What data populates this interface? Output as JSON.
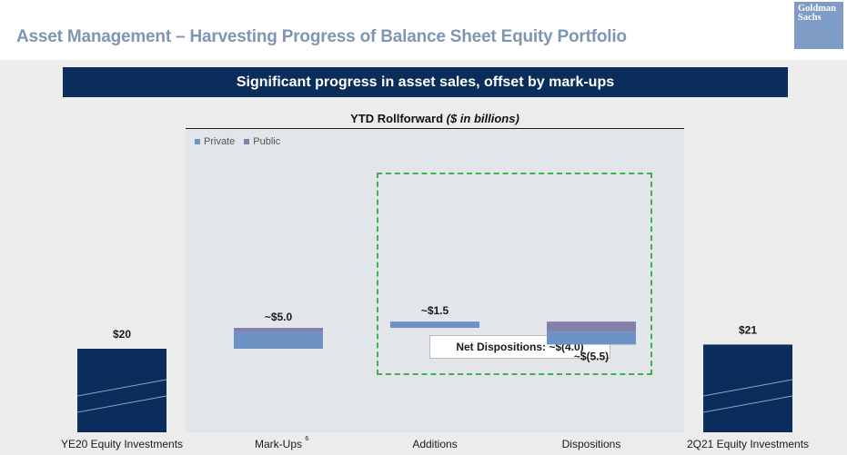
{
  "header": {
    "title": "Asset Management – Harvesting Progress of Balance Sheet Equity Portfolio",
    "logo_line1": "Goldman",
    "logo_line2": "Sachs"
  },
  "banner": {
    "text": "Significant progress in asset sales, offset by mark-ups"
  },
  "panel": {
    "title": "YTD Rollforward",
    "title_unit": "($ in billions)"
  },
  "net_dispositions": {
    "label": "Net Dispositions: ~$(4.0)"
  },
  "colors": {
    "private": "#6d93c4",
    "public": "#8480ae",
    "total": "#0b2d5b",
    "banner": "#0b2d5b",
    "net_box": "#3cb44b"
  },
  "chart_data": {
    "type": "waterfall",
    "title": "YTD Rollforward ($ in billions)",
    "unit": "$ in billions",
    "legend": [
      "Private",
      "Public"
    ],
    "legend_position": "top-left",
    "categories": [
      "YE20 Equity Investments",
      "Mark-Ups",
      "Additions",
      "Dispositions",
      "2Q21 Equity Investments"
    ],
    "category_superscripts": [
      "",
      "6",
      "",
      "",
      ""
    ],
    "bars": [
      {
        "category": "YE20 Equity Investments",
        "kind": "total",
        "value": 20,
        "label": "$20"
      },
      {
        "category": "Mark-Ups",
        "kind": "change",
        "value": 5.0,
        "private": 4.0,
        "public": 1.0,
        "label": "~$5.0"
      },
      {
        "category": "Additions",
        "kind": "change",
        "value": 1.5,
        "private": 1.5,
        "public": 0,
        "label": "~$1.5"
      },
      {
        "category": "Dispositions",
        "kind": "change",
        "value": -5.5,
        "private": -3.0,
        "public": -2.5,
        "label": "~$(5.5)"
      },
      {
        "category": "2Q21 Equity Investments",
        "kind": "total",
        "value": 21,
        "label": "$21"
      }
    ]
  }
}
